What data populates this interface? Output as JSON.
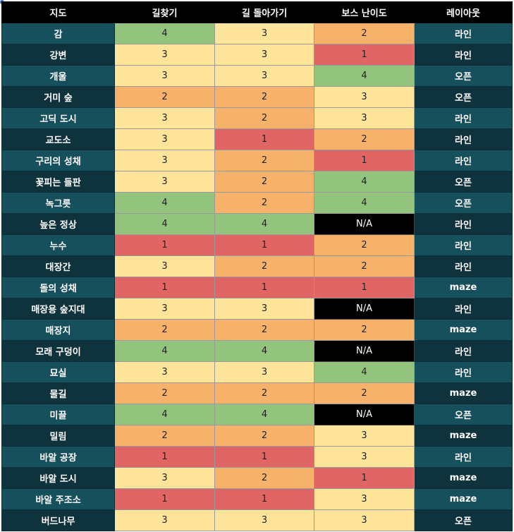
{
  "headers": [
    "지도",
    "길찾기",
    "길 돌아가기",
    "보스 난이도",
    "레이아웃"
  ],
  "scale_colors": {
    "1": "#e06666",
    "2": "#f6b26b",
    "3": "#ffe599",
    "4": "#93c47d",
    "N/A": "#000000"
  },
  "rows": [
    {
      "map": "감",
      "pathfinding": "4",
      "backtracking": "3",
      "boss": "2",
      "layout": "라인"
    },
    {
      "map": "강변",
      "pathfinding": "3",
      "backtracking": "3",
      "boss": "1",
      "layout": "라인"
    },
    {
      "map": "개울",
      "pathfinding": "3",
      "backtracking": "3",
      "boss": "4",
      "layout": "오픈"
    },
    {
      "map": "거미 숲",
      "pathfinding": "2",
      "backtracking": "2",
      "boss": "3",
      "layout": "오픈"
    },
    {
      "map": "고딕 도시",
      "pathfinding": "3",
      "backtracking": "2",
      "boss": "3",
      "layout": "라인"
    },
    {
      "map": "교도소",
      "pathfinding": "3",
      "backtracking": "1",
      "boss": "2",
      "layout": "라인"
    },
    {
      "map": "구리의 성채",
      "pathfinding": "3",
      "backtracking": "2",
      "boss": "1",
      "layout": "라인"
    },
    {
      "map": "꽃피는 들판",
      "pathfinding": "3",
      "backtracking": "2",
      "boss": "4",
      "layout": "오픈"
    },
    {
      "map": "녹그릇",
      "pathfinding": "4",
      "backtracking": "2",
      "boss": "4",
      "layout": "오픈"
    },
    {
      "map": "높은 정상",
      "pathfinding": "4",
      "backtracking": "4",
      "boss": "N/A",
      "layout": "라인"
    },
    {
      "map": "누수",
      "pathfinding": "1",
      "backtracking": "1",
      "boss": "2",
      "layout": "라인"
    },
    {
      "map": "대장간",
      "pathfinding": "3",
      "backtracking": "2",
      "boss": "2",
      "layout": "라인"
    },
    {
      "map": "돌의 성채",
      "pathfinding": "1",
      "backtracking": "1",
      "boss": "1",
      "layout": "maze"
    },
    {
      "map": "매장용 숲지대",
      "pathfinding": "3",
      "backtracking": "3",
      "boss": "N/A",
      "layout": "라인"
    },
    {
      "map": "매장지",
      "pathfinding": "2",
      "backtracking": "2",
      "boss": "2",
      "layout": "maze"
    },
    {
      "map": "모래 구덩이",
      "pathfinding": "4",
      "backtracking": "4",
      "boss": "N/A",
      "layout": "라인"
    },
    {
      "map": "묘실",
      "pathfinding": "3",
      "backtracking": "3",
      "boss": "4",
      "layout": "라인"
    },
    {
      "map": "물길",
      "pathfinding": "2",
      "backtracking": "2",
      "boss": "2",
      "layout": "maze"
    },
    {
      "map": "미끌",
      "pathfinding": "4",
      "backtracking": "4",
      "boss": "N/A",
      "layout": "오픈"
    },
    {
      "map": "밀림",
      "pathfinding": "2",
      "backtracking": "2",
      "boss": "3",
      "layout": "maze"
    },
    {
      "map": "바알 공장",
      "pathfinding": "1",
      "backtracking": "1",
      "boss": "3",
      "layout": "라인"
    },
    {
      "map": "바알 도시",
      "pathfinding": "3",
      "backtracking": "2",
      "boss": "1",
      "layout": "maze"
    },
    {
      "map": "바알 주조소",
      "pathfinding": "1",
      "backtracking": "1",
      "boss": "3",
      "layout": "maze"
    },
    {
      "map": "버드나무",
      "pathfinding": "3",
      "backtracking": "3",
      "boss": "3",
      "layout": "오픈"
    }
  ]
}
